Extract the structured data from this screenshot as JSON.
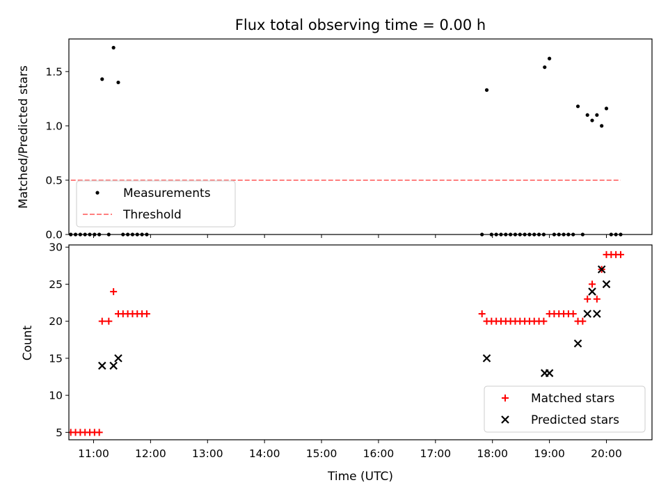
{
  "chart_data": [
    {
      "type": "scatter",
      "title": "Flux total observing time = 0.00 h",
      "ylabel": "Matched/Predicted stars",
      "xlim": [
        "10:34",
        "20:48"
      ],
      "ylim": [
        0,
        1.8
      ],
      "yticks": [
        "0.0",
        "0.5",
        "1.0",
        "1.5"
      ],
      "legend_position": "lower-left",
      "series": [
        {
          "name": "Measurements",
          "kind": "scatter",
          "color": "#000000",
          "points": [
            [
              "10:36",
              0
            ],
            [
              "10:41",
              0
            ],
            [
              "10:46",
              0
            ],
            [
              "10:51",
              0
            ],
            [
              "10:56",
              0
            ],
            [
              "11:01",
              0
            ],
            [
              "11:06",
              0
            ],
            [
              "11:09",
              1.43
            ],
            [
              "11:16",
              0
            ],
            [
              "11:21",
              1.72
            ],
            [
              "11:26",
              1.4
            ],
            [
              "11:31",
              0
            ],
            [
              "11:36",
              0
            ],
            [
              "11:41",
              0
            ],
            [
              "11:46",
              0
            ],
            [
              "11:51",
              0
            ],
            [
              "11:56",
              0
            ],
            [
              "17:49",
              0
            ],
            [
              "17:54",
              1.33
            ],
            [
              "17:59",
              0
            ],
            [
              "18:04",
              0
            ],
            [
              "18:09",
              0
            ],
            [
              "18:14",
              0
            ],
            [
              "18:19",
              0
            ],
            [
              "18:24",
              0
            ],
            [
              "18:29",
              0
            ],
            [
              "18:34",
              0
            ],
            [
              "18:39",
              0
            ],
            [
              "18:44",
              0
            ],
            [
              "18:49",
              0
            ],
            [
              "18:54",
              0
            ],
            [
              "18:55",
              1.54
            ],
            [
              "19:00",
              1.62
            ],
            [
              "19:05",
              0
            ],
            [
              "19:10",
              0
            ],
            [
              "19:15",
              0
            ],
            [
              "19:20",
              0
            ],
            [
              "19:25",
              0
            ],
            [
              "19:30",
              1.18
            ],
            [
              "19:35",
              0
            ],
            [
              "19:40",
              1.1
            ],
            [
              "19:45",
              1.05
            ],
            [
              "19:50",
              1.1
            ],
            [
              "19:55",
              1.0
            ],
            [
              "20:00",
              1.16
            ],
            [
              "20:05",
              0
            ],
            [
              "20:10",
              0
            ],
            [
              "20:15",
              0
            ]
          ]
        },
        {
          "name": "Threshold",
          "kind": "line",
          "style": "dashed",
          "color": "#ff7f7f",
          "points": [
            [
              "10:36",
              0.5
            ],
            [
              "20:15",
              0.5
            ]
          ]
        }
      ]
    },
    {
      "type": "scatter",
      "xlabel": "Time (UTC)",
      "ylabel": "Count",
      "xlim": [
        "10:34",
        "20:48"
      ],
      "ylim": [
        4,
        30.3
      ],
      "yticks": [
        "5",
        "10",
        "15",
        "20",
        "25",
        "30"
      ],
      "xticks": [
        "11:00",
        "12:00",
        "13:00",
        "14:00",
        "15:00",
        "16:00",
        "17:00",
        "18:00",
        "19:00",
        "20:00"
      ],
      "legend_position": "lower-right",
      "series": [
        {
          "name": "Matched stars",
          "marker": "+",
          "color": "#ff0000",
          "points": [
            [
              "10:36",
              5
            ],
            [
              "10:41",
              5
            ],
            [
              "10:46",
              5
            ],
            [
              "10:51",
              5
            ],
            [
              "10:56",
              5
            ],
            [
              "11:01",
              5
            ],
            [
              "11:06",
              5
            ],
            [
              "11:09",
              20
            ],
            [
              "11:16",
              20
            ],
            [
              "11:21",
              24
            ],
            [
              "11:26",
              21
            ],
            [
              "11:31",
              21
            ],
            [
              "11:36",
              21
            ],
            [
              "11:41",
              21
            ],
            [
              "11:46",
              21
            ],
            [
              "11:51",
              21
            ],
            [
              "11:56",
              21
            ],
            [
              "17:49",
              21
            ],
            [
              "17:54",
              20
            ],
            [
              "17:59",
              20
            ],
            [
              "18:04",
              20
            ],
            [
              "18:09",
              20
            ],
            [
              "18:14",
              20
            ],
            [
              "18:19",
              20
            ],
            [
              "18:24",
              20
            ],
            [
              "18:29",
              20
            ],
            [
              "18:34",
              20
            ],
            [
              "18:39",
              20
            ],
            [
              "18:44",
              20
            ],
            [
              "18:49",
              20
            ],
            [
              "18:54",
              20
            ],
            [
              "19:00",
              21
            ],
            [
              "19:05",
              21
            ],
            [
              "19:10",
              21
            ],
            [
              "19:15",
              21
            ],
            [
              "19:20",
              21
            ],
            [
              "19:25",
              21
            ],
            [
              "19:30",
              20
            ],
            [
              "19:35",
              20
            ],
            [
              "19:40",
              23
            ],
            [
              "19:45",
              25
            ],
            [
              "19:50",
              23
            ],
            [
              "19:55",
              27
            ],
            [
              "20:00",
              29
            ],
            [
              "20:05",
              29
            ],
            [
              "20:10",
              29
            ],
            [
              "20:15",
              29
            ]
          ]
        },
        {
          "name": "Predicted stars",
          "marker": "x",
          "color": "#000000",
          "points": [
            [
              "11:09",
              14
            ],
            [
              "11:21",
              14
            ],
            [
              "11:26",
              15
            ],
            [
              "17:54",
              15
            ],
            [
              "18:55",
              13
            ],
            [
              "19:00",
              13
            ],
            [
              "19:30",
              17
            ],
            [
              "19:40",
              21
            ],
            [
              "19:45",
              24
            ],
            [
              "19:50",
              21
            ],
            [
              "19:55",
              27
            ],
            [
              "20:00",
              25
            ]
          ]
        }
      ]
    }
  ]
}
